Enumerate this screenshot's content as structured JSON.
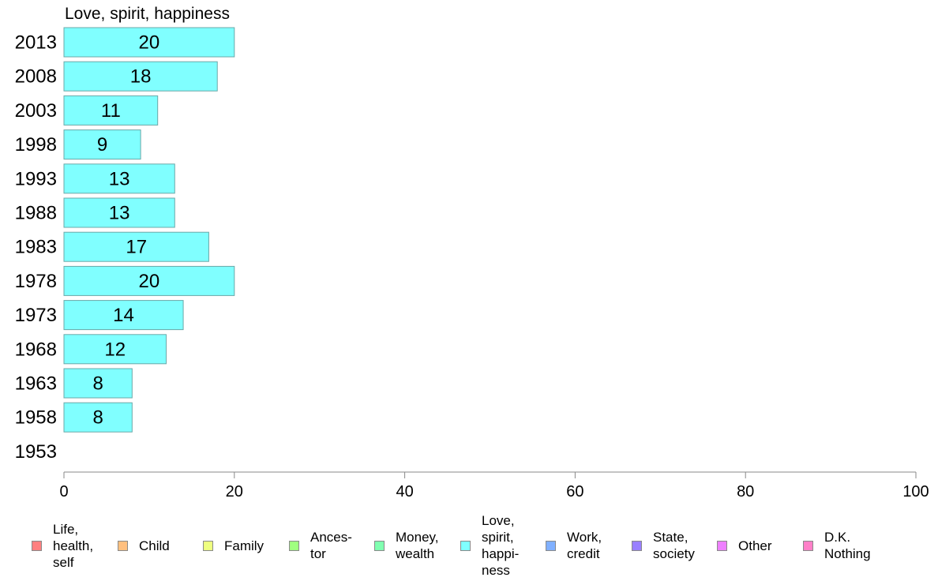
{
  "chart_data": {
    "type": "bar",
    "orientation": "horizontal",
    "title": "Love, spirit, happiness",
    "categories": [
      "2013",
      "2008",
      "2003",
      "1998",
      "1993",
      "1988",
      "1983",
      "1978",
      "1973",
      "1968",
      "1963",
      "1958",
      "1953"
    ],
    "series": [
      {
        "name": "Love, spirit, happiness",
        "values": [
          20,
          18,
          11,
          9,
          13,
          13,
          17,
          20,
          14,
          12,
          8,
          8,
          null
        ],
        "data_labels": [
          "20",
          "18",
          "11",
          "9",
          "13",
          "13",
          "17",
          "20",
          "14",
          "12",
          "8",
          "8",
          ""
        ],
        "color": "#80ffff"
      }
    ],
    "xlim": [
      0,
      100
    ],
    "xticks": [
      "0",
      "20",
      "40",
      "60",
      "80",
      "100"
    ],
    "xlabel": "",
    "ylabel": "",
    "grid": false,
    "legend_position": "bottom"
  },
  "legend": [
    {
      "label": "Life,\nhealth,\nself",
      "color": "#ff8080"
    },
    {
      "label": "Child",
      "color": "#ffc080"
    },
    {
      "label": "Family",
      "color": "#eeff80"
    },
    {
      "label": "Ances-\ntor",
      "color": "#a0ff80"
    },
    {
      "label": "Money,\nwealth",
      "color": "#80ffb0"
    },
    {
      "label": "Love,\nspirit,\nhappi-\nness",
      "color": "#80ffff"
    },
    {
      "label": "Work,\ncredit",
      "color": "#80b0ff"
    },
    {
      "label": "State,\nsociety",
      "color": "#9980ff"
    },
    {
      "label": "Other",
      "color": "#ee80ff"
    },
    {
      "label": "D.K.\nNothing",
      "color": "#ff80c8"
    }
  ]
}
